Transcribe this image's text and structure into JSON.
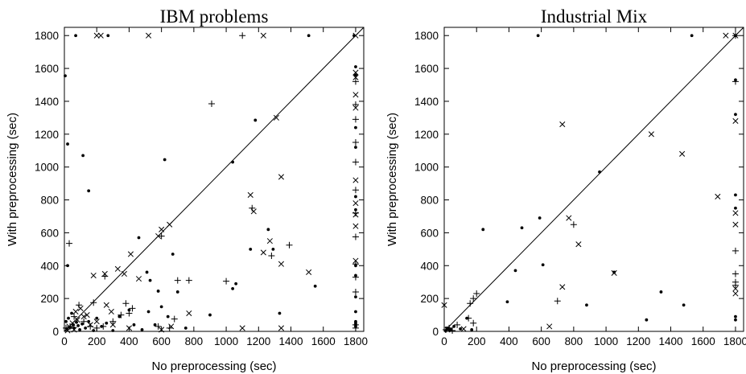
{
  "chart_data": [
    {
      "type": "scatter",
      "title": "IBM problems",
      "xlabel": "No preprocessing (sec)",
      "ylabel": "With preprocessing (sec)",
      "xlim": [
        0,
        1850
      ],
      "ylim": [
        0,
        1850
      ],
      "xticks": [
        0,
        200,
        400,
        600,
        800,
        1000,
        1200,
        1400,
        1600,
        1800
      ],
      "yticks": [
        0,
        200,
        400,
        600,
        800,
        1000,
        1200,
        1400,
        1600,
        1800
      ],
      "diagonal": true,
      "series": [
        {
          "marker": "dot",
          "points": [
            [
              5,
              1555
            ],
            [
              20,
              1140
            ],
            [
              115,
              1070
            ],
            [
              150,
              855
            ],
            [
              70,
              1800
            ],
            [
              270,
              1800
            ],
            [
              620,
              1045
            ],
            [
              1040,
              1030
            ],
            [
              1180,
              1285
            ],
            [
              1510,
              1800
            ],
            [
              1790,
              1800
            ],
            [
              1800,
              1610
            ],
            [
              1800,
              1560
            ],
            [
              1800,
              1240
            ],
            [
              1800,
              1120
            ],
            [
              1800,
              820
            ],
            [
              1800,
              740
            ],
            [
              1800,
              400
            ],
            [
              1800,
              340
            ],
            [
              1800,
              210
            ],
            [
              1800,
              120
            ],
            [
              1800,
              60
            ],
            [
              1800,
              50
            ],
            [
              1800,
              40
            ],
            [
              1800,
              30
            ],
            [
              460,
              570
            ],
            [
              510,
              360
            ],
            [
              530,
              310
            ],
            [
              580,
              245
            ],
            [
              600,
              150
            ],
            [
              670,
              470
            ],
            [
              1040,
              260
            ],
            [
              1060,
              290
            ],
            [
              1150,
              500
            ],
            [
              1260,
              620
            ],
            [
              1290,
              500
            ],
            [
              1550,
              275
            ],
            [
              1330,
              110
            ],
            [
              900,
              100
            ],
            [
              750,
              20
            ],
            [
              560,
              40
            ],
            [
              15,
              15
            ],
            [
              35,
              25
            ],
            [
              55,
              40
            ],
            [
              75,
              55
            ],
            [
              95,
              10
            ],
            [
              130,
              20
            ],
            [
              180,
              5
            ],
            [
              230,
              30
            ],
            [
              260,
              50
            ],
            [
              300,
              5
            ],
            [
              340,
              90
            ],
            [
              400,
              130
            ],
            [
              430,
              40
            ],
            [
              480,
              10
            ],
            [
              520,
              120
            ],
            [
              640,
              90
            ],
            [
              700,
              240
            ],
            [
              10,
              60
            ],
            [
              25,
              80
            ],
            [
              45,
              110
            ],
            [
              60,
              20
            ],
            [
              85,
              35
            ],
            [
              110,
              45
            ],
            [
              150,
              60
            ],
            [
              200,
              80
            ],
            [
              20,
              400
            ]
          ]
        },
        {
          "marker": "cross",
          "points": [
            [
              200,
              1800
            ],
            [
              225,
              1800
            ],
            [
              520,
              1800
            ],
            [
              1230,
              1800
            ],
            [
              1800,
              1800
            ],
            [
              1800,
              1575
            ],
            [
              1800,
              1545
            ],
            [
              1800,
              1440
            ],
            [
              1800,
              1360
            ],
            [
              1800,
              920
            ],
            [
              1800,
              780
            ],
            [
              1800,
              710
            ],
            [
              1800,
              640
            ],
            [
              1800,
              430
            ],
            [
              1310,
              1300
            ],
            [
              1340,
              940
            ],
            [
              1150,
              830
            ],
            [
              1170,
              730
            ],
            [
              1230,
              480
            ],
            [
              1270,
              550
            ],
            [
              1340,
              410
            ],
            [
              1510,
              360
            ],
            [
              1340,
              20
            ],
            [
              1100,
              20
            ],
            [
              770,
              110
            ],
            [
              410,
              470
            ],
            [
              330,
              380
            ],
            [
              370,
              350
            ],
            [
              460,
              320
            ],
            [
              580,
              580
            ],
            [
              600,
              620
            ],
            [
              650,
              650
            ],
            [
              180,
              340
            ],
            [
              250,
              350
            ],
            [
              260,
              160
            ],
            [
              290,
              120
            ],
            [
              200,
              60
            ],
            [
              140,
              100
            ],
            [
              100,
              140
            ],
            [
              70,
              120
            ],
            [
              50,
              50
            ],
            [
              30,
              30
            ],
            [
              80,
              70
            ],
            [
              120,
              90
            ],
            [
              160,
              40
            ],
            [
              300,
              40
            ],
            [
              400,
              20
            ],
            [
              600,
              10
            ],
            [
              660,
              30
            ],
            [
              20,
              5
            ],
            [
              60,
              10
            ]
          ]
        },
        {
          "marker": "plus",
          "points": [
            [
              1100,
              1800
            ],
            [
              1800,
              1520
            ],
            [
              1800,
              1380
            ],
            [
              1800,
              1290
            ],
            [
              1800,
              1150
            ],
            [
              1800,
              1030
            ],
            [
              1800,
              860
            ],
            [
              1800,
              720
            ],
            [
              1800,
              575
            ],
            [
              1800,
              410
            ],
            [
              1800,
              330
            ],
            [
              1800,
              240
            ],
            [
              1800,
              40
            ],
            [
              1800,
              20
            ],
            [
              910,
              1385
            ],
            [
              1160,
              750
            ],
            [
              1280,
              460
            ],
            [
              1390,
              525
            ],
            [
              600,
              580
            ],
            [
              250,
              335
            ],
            [
              30,
              535
            ],
            [
              700,
              310
            ],
            [
              770,
              310
            ],
            [
              1000,
              305
            ],
            [
              680,
              75
            ],
            [
              650,
              20
            ],
            [
              580,
              30
            ],
            [
              350,
              100
            ],
            [
              400,
              110
            ],
            [
              420,
              140
            ],
            [
              380,
              170
            ],
            [
              120,
              60
            ],
            [
              160,
              30
            ],
            [
              200,
              20
            ],
            [
              240,
              30
            ],
            [
              90,
              160
            ],
            [
              60,
              90
            ],
            [
              35,
              30
            ],
            [
              10,
              20
            ],
            [
              180,
              175
            ],
            [
              300,
              60
            ]
          ]
        }
      ]
    },
    {
      "type": "scatter",
      "title": "Industrial Mix",
      "xlabel": "No preprocessing (sec)",
      "ylabel": "With preprocessing (sec)",
      "xlim": [
        0,
        1850
      ],
      "ylim": [
        0,
        1850
      ],
      "xticks": [
        0,
        200,
        400,
        600,
        800,
        1000,
        1200,
        1400,
        1600,
        1800
      ],
      "yticks": [
        0,
        200,
        400,
        600,
        800,
        1000,
        1200,
        1400,
        1600,
        1800
      ],
      "diagonal": true,
      "series": [
        {
          "marker": "dot",
          "points": [
            [
              580,
              1800
            ],
            [
              1530,
              1800
            ],
            [
              1800,
              1800
            ],
            [
              1800,
              1530
            ],
            [
              1800,
              1320
            ],
            [
              1800,
              830
            ],
            [
              1800,
              750
            ],
            [
              1800,
              90
            ],
            [
              1800,
              70
            ],
            [
              960,
              970
            ],
            [
              590,
              690
            ],
            [
              610,
              405
            ],
            [
              480,
              630
            ],
            [
              240,
              620
            ],
            [
              440,
              370
            ],
            [
              390,
              180
            ],
            [
              880,
              160
            ],
            [
              1050,
              360
            ],
            [
              1340,
              240
            ],
            [
              1480,
              160
            ],
            [
              1250,
              70
            ],
            [
              140,
              80
            ],
            [
              20,
              20
            ],
            [
              40,
              10
            ],
            [
              60,
              30
            ],
            [
              100,
              15
            ],
            [
              10,
              5
            ],
            [
              170,
              10
            ]
          ]
        },
        {
          "marker": "cross",
          "points": [
            [
              1740,
              1800
            ],
            [
              1800,
              1800
            ],
            [
              1800,
              1280
            ],
            [
              1800,
              720
            ],
            [
              1800,
              650
            ],
            [
              1800,
              260
            ],
            [
              1800,
              230
            ],
            [
              730,
              1260
            ],
            [
              1280,
              1200
            ],
            [
              1470,
              1080
            ],
            [
              1690,
              820
            ],
            [
              770,
              690
            ],
            [
              830,
              530
            ],
            [
              730,
              270
            ],
            [
              1050,
              355
            ],
            [
              650,
              30
            ],
            [
              0,
              160
            ],
            [
              20,
              10
            ],
            [
              120,
              15
            ]
          ]
        },
        {
          "marker": "plus",
          "points": [
            [
              1800,
              1800
            ],
            [
              1800,
              1520
            ],
            [
              1800,
              490
            ],
            [
              1800,
              350
            ],
            [
              1800,
              300
            ],
            [
              1800,
              280
            ],
            [
              800,
              650
            ],
            [
              700,
              185
            ],
            [
              200,
              230
            ],
            [
              180,
              200
            ],
            [
              160,
              170
            ],
            [
              150,
              80
            ],
            [
              180,
              50
            ],
            [
              80,
              40
            ],
            [
              30,
              20
            ],
            [
              10,
              10
            ],
            [
              50,
              5
            ]
          ]
        }
      ]
    }
  ]
}
